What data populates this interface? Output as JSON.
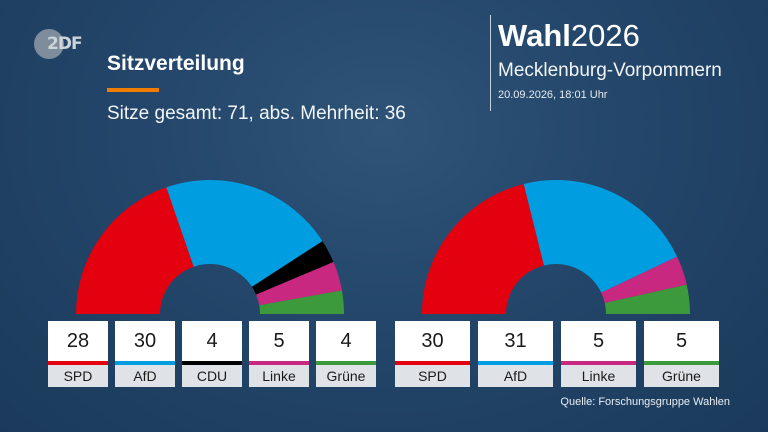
{
  "header": {
    "logo_text": "2DF",
    "title": "Sitzverteilung",
    "subtitle": "Sitze gesamt: 71, abs. Mehrheit: 36",
    "brand_bold": "Wahl",
    "brand_year": "2026",
    "region": "Mecklenburg-Vorpommern",
    "timestamp": "20.09.2026, 18:01 Uhr"
  },
  "footer": {
    "source": "Quelle: Forschungsgruppe Wahlen"
  },
  "colors": {
    "accent": "#f07d00",
    "background": "#23466a"
  },
  "chart_data": [
    {
      "type": "pie",
      "shape": "semicircle-parliament",
      "total_seats": 71,
      "categories": [
        "SPD",
        "AfD",
        "CDU",
        "Linke",
        "Grüne"
      ],
      "values": [
        28,
        30,
        4,
        5,
        4
      ],
      "colors": [
        "#e3000f",
        "#009ee0",
        "#000000",
        "#c8287f",
        "#3c9a3c"
      ],
      "labels": [
        "28",
        "30",
        "4",
        "5",
        "4"
      ]
    },
    {
      "type": "pie",
      "shape": "semicircle-parliament",
      "total_seats": 71,
      "categories": [
        "SPD",
        "AfD",
        "Linke",
        "Grüne"
      ],
      "values": [
        30,
        31,
        5,
        5
      ],
      "colors": [
        "#e3000f",
        "#009ee0",
        "#c8287f",
        "#3c9a3c"
      ],
      "labels": [
        "30",
        "31",
        "5",
        "5"
      ]
    }
  ]
}
